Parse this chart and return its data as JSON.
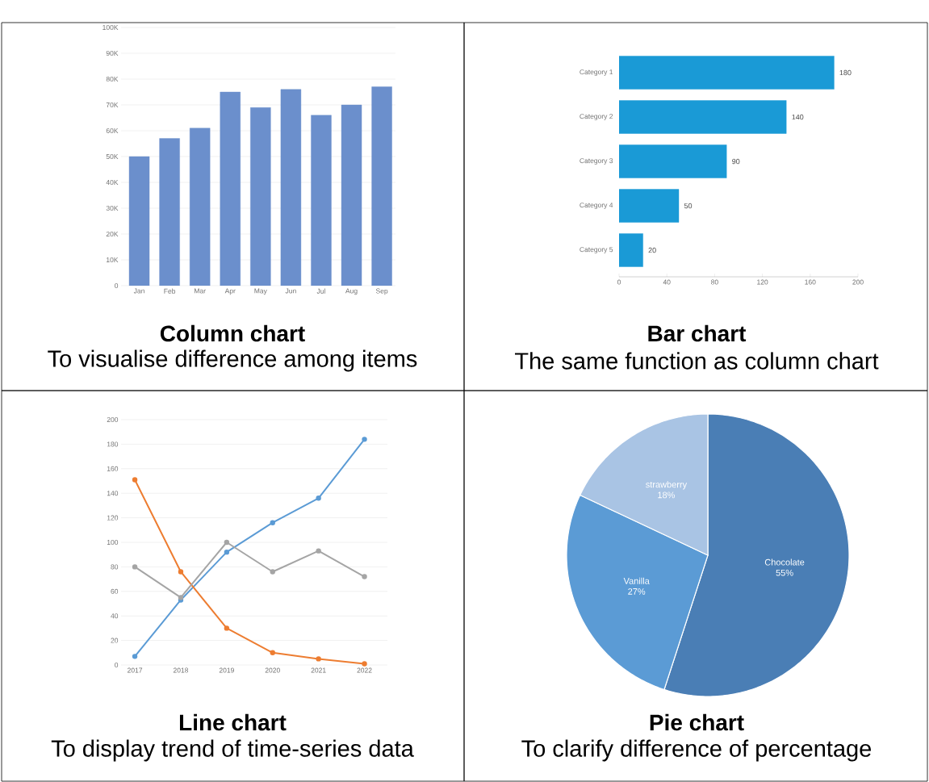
{
  "chart_data": [
    {
      "type": "bar",
      "title": "Column chart",
      "subtitle": "To visualise difference among items",
      "categories": [
        "Jan",
        "Feb",
        "Mar",
        "Apr",
        "May",
        "Jun",
        "Jul",
        "Aug",
        "Sep"
      ],
      "values": [
        50000,
        57000,
        61000,
        75000,
        69000,
        76000,
        66000,
        70000,
        77000
      ],
      "color": "#6b8fcc",
      "ylim": [
        0,
        100000
      ],
      "yticks": [
        0,
        {
          "value": 10000,
          "label": "10K"
        },
        {
          "value": 20000,
          "label": "20K"
        },
        {
          "value": 30000,
          "label": "30K"
        },
        {
          "value": 40000,
          "label": "40K"
        },
        {
          "value": 50000,
          "label": "50K"
        },
        {
          "value": 60000,
          "label": "60K"
        },
        {
          "value": 70000,
          "label": "70K"
        },
        {
          "value": 80000,
          "label": "80K"
        },
        {
          "value": 90000,
          "label": "90K"
        },
        {
          "value": 100000,
          "label": "100K"
        }
      ],
      "grid": "y"
    },
    {
      "type": "bar",
      "orientation": "horizontal",
      "title": "Bar chart",
      "subtitle": "The same function as column chart",
      "categories": [
        "Category 1",
        "Category 2",
        "Category 3",
        "Category 4",
        "Category 5"
      ],
      "values": [
        180,
        140,
        90,
        50,
        20
      ],
      "color": "#1a9ad6",
      "xlim": [
        0,
        200
      ],
      "xticks": [
        0,
        40,
        80,
        120,
        160,
        200
      ],
      "data_labels": true
    },
    {
      "type": "line",
      "title": "Line chart",
      "subtitle": "To display trend of time-series data",
      "categories": [
        "2017",
        "2018",
        "2019",
        "2020",
        "2021",
        "2022"
      ],
      "ylim": [
        0,
        200
      ],
      "yticks": [
        0,
        20,
        40,
        60,
        80,
        100,
        120,
        140,
        160,
        180,
        200
      ],
      "grid": "y",
      "marker": "circle",
      "series": [
        {
          "color": "#5b9bd5",
          "values": [
            7,
            53,
            92,
            116,
            136,
            184
          ]
        },
        {
          "color": "#ed7d31",
          "values": [
            151,
            76,
            30,
            10,
            5,
            1
          ]
        },
        {
          "color": "#a5a5a5",
          "values": [
            80,
            55,
            100,
            76,
            93,
            72
          ]
        }
      ]
    },
    {
      "type": "pie",
      "title": "Pie chart",
      "subtitle": "To clarify difference of percentage",
      "categories": [
        "Chocolate",
        "Vanilla",
        "strawberry"
      ],
      "values": [
        55,
        27,
        18
      ],
      "value_labels": [
        "55%",
        "27%",
        "18%"
      ],
      "colors": [
        "#4a7eb5",
        "#5b9bd5",
        "#a9c4e4"
      ]
    }
  ]
}
